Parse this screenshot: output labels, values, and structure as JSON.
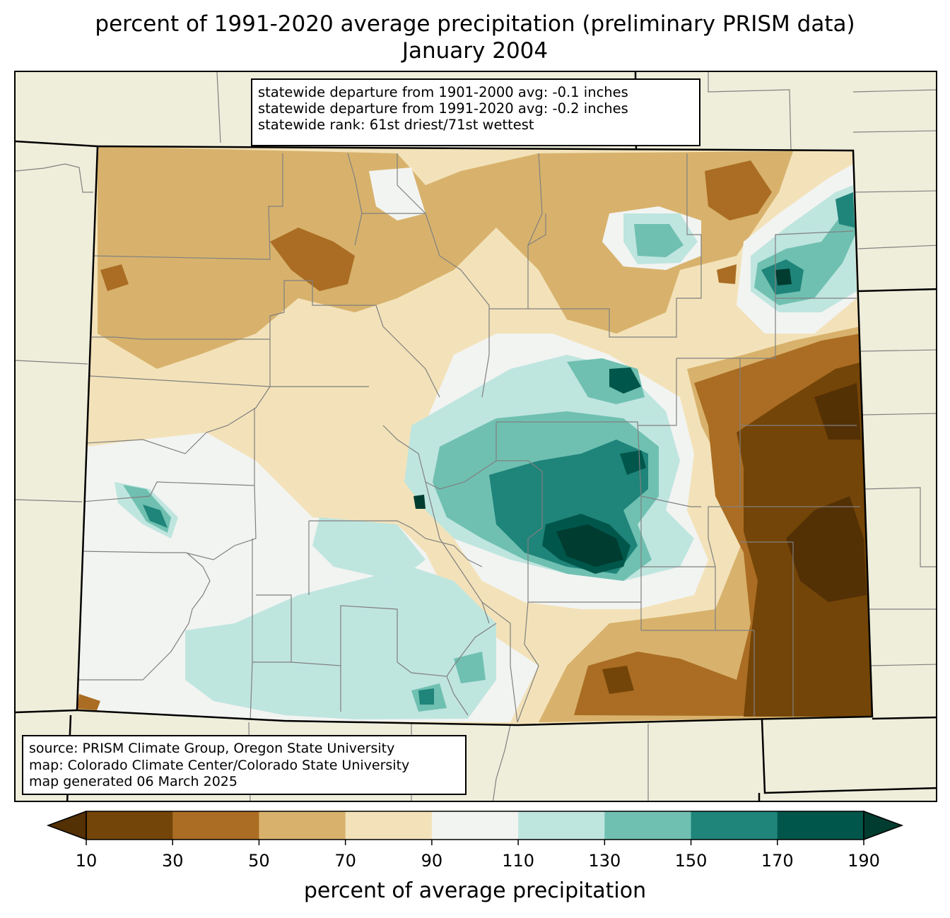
{
  "title": {
    "line1": "percent of 1991-2020 average precipitation (preliminary PRISM data)",
    "line2": "January 2004"
  },
  "stats": {
    "line1": "statewide departure from 1901-2000 avg: -0.1 inches",
    "line2": "statewide departure from 1991-2020 avg: -0.2 inches",
    "line3": "statewide rank: 61st driest/71st wettest"
  },
  "source": {
    "line1": "source: PRISM Climate Group, Oregon State University",
    "line2": "map: Colorado Climate Center/Colorado State University",
    "line3": "map generated 06 March 2025"
  },
  "colorbar": {
    "label": "percent of average precipitation",
    "ticks": [
      "10",
      "30",
      "50",
      "70",
      "90",
      "110",
      "130",
      "150",
      "170",
      "190"
    ],
    "under_color": "#543005",
    "over_color": "#003c30",
    "bins": [
      {
        "range": "10-30",
        "color": "#744508"
      },
      {
        "range": "30-50",
        "color": "#aa6d23"
      },
      {
        "range": "50-70",
        "color": "#d8b26c"
      },
      {
        "range": "70-90",
        "color": "#f3e2b9"
      },
      {
        "range": "90-110",
        "color": "#f2f4f2"
      },
      {
        "range": "110-130",
        "color": "#bfe5df"
      },
      {
        "range": "130-150",
        "color": "#6fc0b1"
      },
      {
        "range": "150-170",
        "color": "#1f847a"
      },
      {
        "range": "170-190",
        "color": "#00564a"
      }
    ]
  },
  "colors": {
    "background_land": "#efeedb",
    "county_lines": "#808080",
    "state_lines": "#000000"
  }
}
